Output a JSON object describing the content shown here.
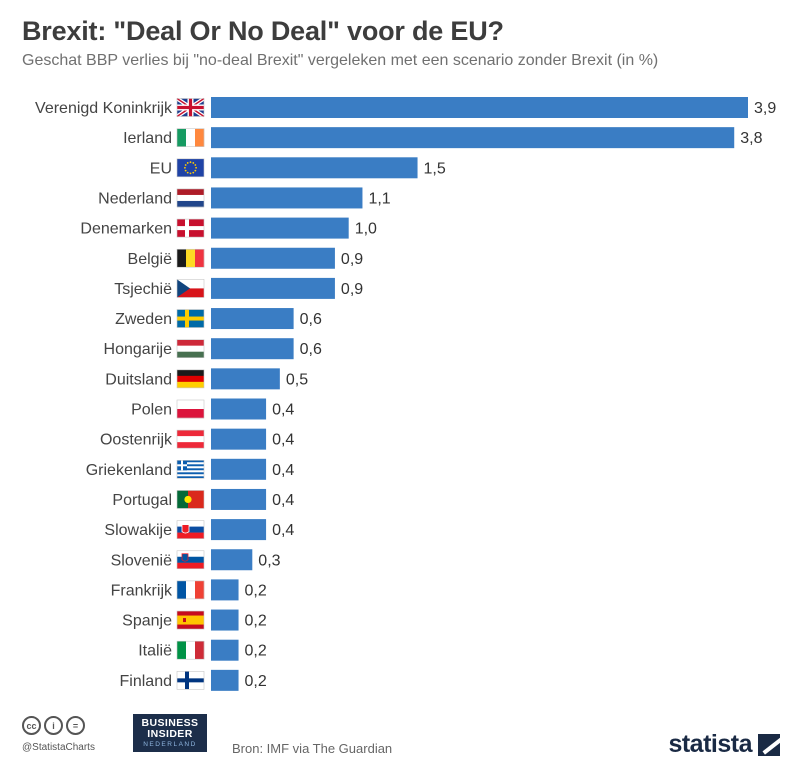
{
  "chart_data": {
    "type": "bar",
    "orientation": "horizontal",
    "title": "Brexit: \"Deal Or No Deal\" voor de EU?",
    "subtitle": "Geschat BBP verlies bij \"no-deal Brexit\" vergeleken met een scenario zonder Brexit (in %)",
    "categories": [
      "Verenigd Koninkrijk",
      "Ierland",
      "EU",
      "Nederland",
      "Denemarken",
      "België",
      "Tsjechië",
      "Zweden",
      "Hongarije",
      "Duitsland",
      "Polen",
      "Oostenrijk",
      "Griekenland",
      "Portugal",
      "Slowakije",
      "Slovenië",
      "Frankrijk",
      "Spanje",
      "Italië",
      "Finland"
    ],
    "values": [
      3.9,
      3.8,
      1.5,
      1.1,
      1.0,
      0.9,
      0.9,
      0.6,
      0.6,
      0.5,
      0.4,
      0.4,
      0.4,
      0.4,
      0.4,
      0.3,
      0.2,
      0.2,
      0.2,
      0.2
    ],
    "value_labels": [
      "3,9",
      "3,8",
      "1,5",
      "1,1",
      "1,0",
      "0,9",
      "0,9",
      "0,6",
      "0,6",
      "0,5",
      "0,4",
      "0,4",
      "0,4",
      "0,4",
      "0,4",
      "0,3",
      "0,2",
      "0,2",
      "0,2",
      "0,2"
    ],
    "flags": [
      "uk-flag-icon",
      "ireland-flag-icon",
      "eu-flag-icon",
      "netherlands-flag-icon",
      "denmark-flag-icon",
      "belgium-flag-icon",
      "czech-flag-icon",
      "sweden-flag-icon",
      "hungary-flag-icon",
      "germany-flag-icon",
      "poland-flag-icon",
      "austria-flag-icon",
      "greece-flag-icon",
      "portugal-flag-icon",
      "slovakia-flag-icon",
      "slovenia-flag-icon",
      "france-flag-icon",
      "spain-flag-icon",
      "italy-flag-icon",
      "finland-flag-icon"
    ],
    "xlim": [
      0,
      3.9
    ],
    "xlabel": "",
    "ylabel": "",
    "bar_color": "#3a7dc4",
    "grid": false
  },
  "footer": {
    "handle": "@StatistaCharts",
    "source": "Bron: IMF via The Guardian",
    "brand": "statista",
    "partner_line1": "BUSINESS",
    "partner_line2": "INSIDER",
    "partner_line3": "NEDERLAND",
    "cc_icons": [
      "cc",
      "i",
      "="
    ]
  }
}
